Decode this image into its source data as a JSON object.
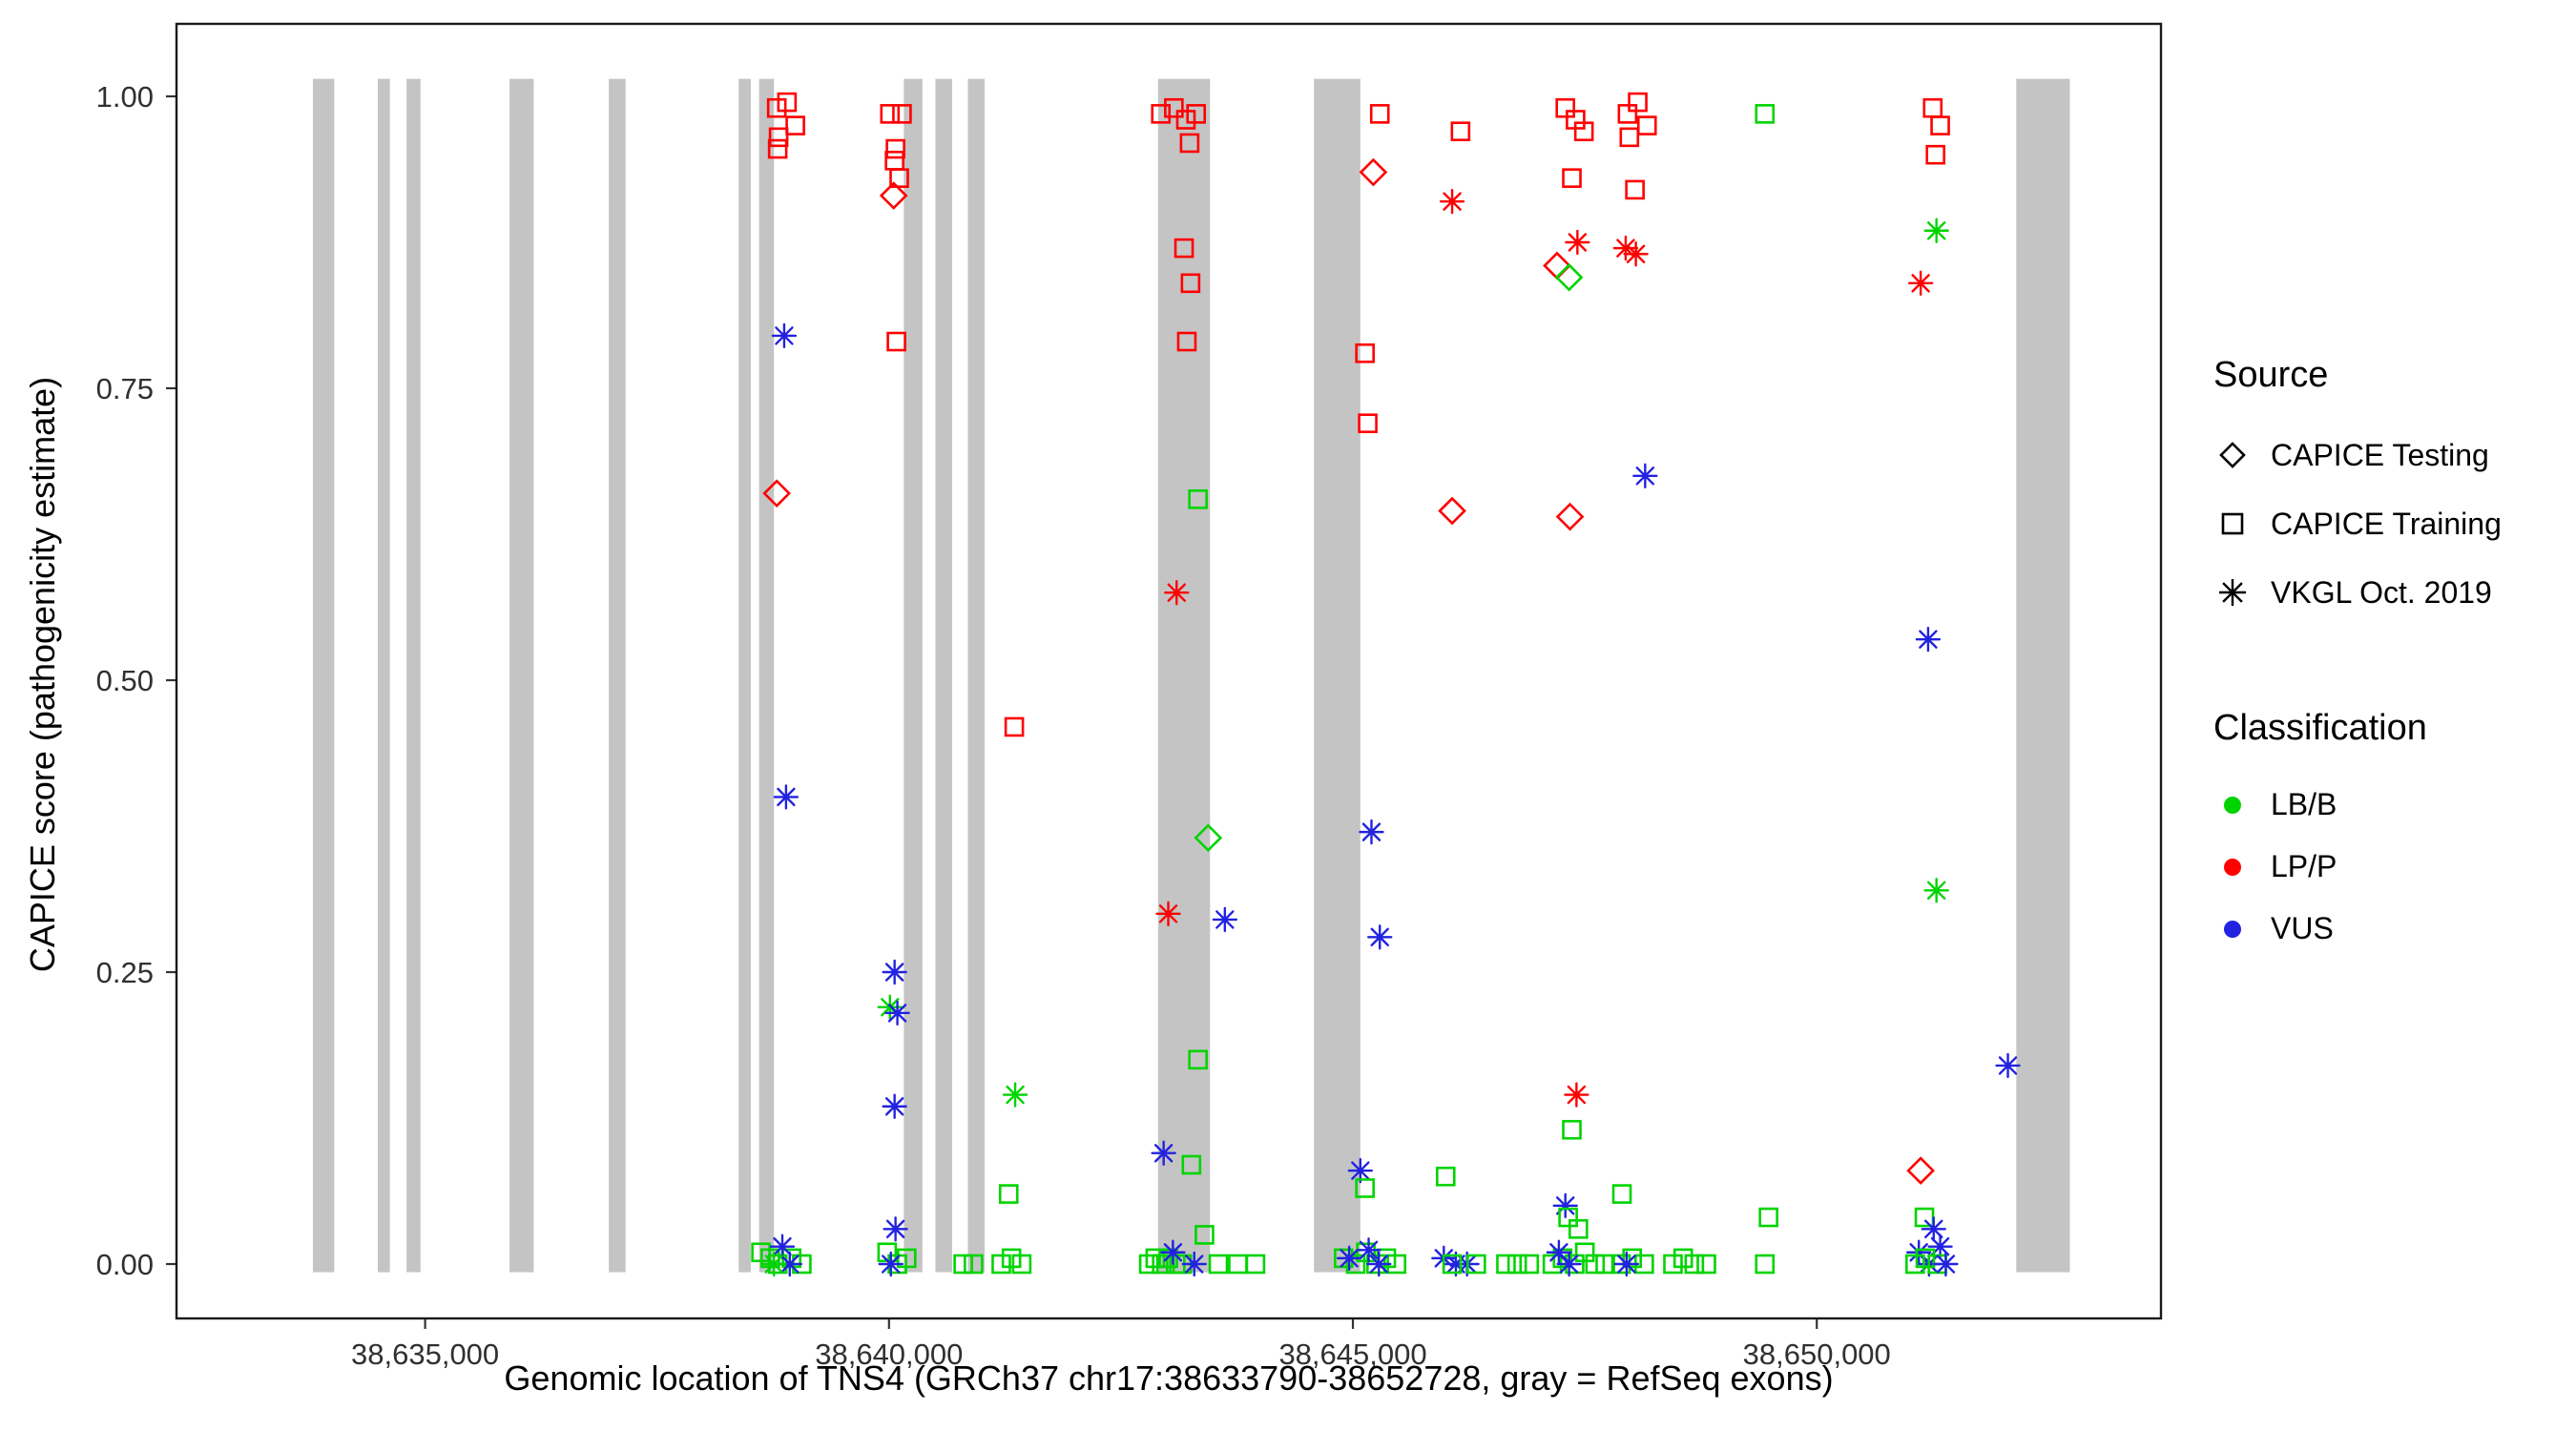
{
  "figure": {
    "kind": "scatter plot of variant pathogenicity over genomic position"
  },
  "legend": {
    "source": {
      "title": "Source",
      "items": [
        {
          "marker": "diamond",
          "label": "CAPICE Testing"
        },
        {
          "marker": "square",
          "label": "CAPICE Training"
        },
        {
          "marker": "asterisk",
          "label": "VKGL Oct. 2019"
        }
      ]
    },
    "classification": {
      "title": "Classification",
      "items": [
        {
          "key": "lbb",
          "label": "LB/B"
        },
        {
          "key": "lpp",
          "label": "LP/P"
        },
        {
          "key": "vus",
          "label": "VUS"
        }
      ]
    }
  },
  "colors": {
    "lbb": "#00D400",
    "lpp": "#FF0000",
    "vus": "#2222E0",
    "exon": "#C4C4C4",
    "tick_text": "#303030",
    "panel_border": "#1a1a1a"
  },
  "chart_data": {
    "type": "scatter",
    "title": "",
    "xlabel": "Genomic location of TNS4 (GRCh37 chr17:38633790-38652728, gray = RefSeq exons)",
    "ylabel": "CAPICE score (pathogenicity estimate)",
    "x_domain": [
      38632320,
      38653710
    ],
    "y_domain": [
      0,
      1
    ],
    "x_ticks": [
      {
        "value": 38635000,
        "label": "38,635,000"
      },
      {
        "value": 38640000,
        "label": "38,640,000"
      },
      {
        "value": 38645000,
        "label": "38,645,000"
      },
      {
        "value": 38650000,
        "label": "38,650,000"
      }
    ],
    "y_ticks": [
      {
        "value": 1.0,
        "label": "1.00"
      },
      {
        "value": 0.75,
        "label": "0.75"
      },
      {
        "value": 0.5,
        "label": "0.50"
      },
      {
        "value": 0.25,
        "label": "0.25"
      },
      {
        "value": 0.0,
        "label": "0.00"
      }
    ],
    "exons_note": "gray RefSeq exon bands, [start,end] genomic positions",
    "exons": [
      [
        38633790,
        38634020
      ],
      [
        38634490,
        38634620
      ],
      [
        38634800,
        38634950
      ],
      [
        38635910,
        38636170
      ],
      [
        38636980,
        38637160
      ],
      [
        38638380,
        38638510
      ],
      [
        38638600,
        38638760
      ],
      [
        38640160,
        38640360
      ],
      [
        38640500,
        38640680
      ],
      [
        38640850,
        38641030
      ],
      [
        38642900,
        38643460
      ],
      [
        38644580,
        38645080
      ],
      [
        38652150,
        38652728
      ]
    ],
    "points_format": [
      "genomic_position",
      "capice_score",
      "source (testing=diamond, training=square, vkgl=asterisk)",
      "classification"
    ],
    "points": [
      [
        38638790,
        0.99,
        "training",
        "LP/P"
      ],
      [
        38638900,
        0.995,
        "training",
        "LP/P"
      ],
      [
        38638990,
        0.975,
        "training",
        "LP/P"
      ],
      [
        38638810,
        0.965,
        "training",
        "LP/P"
      ],
      [
        38638800,
        0.955,
        "training",
        "LP/P"
      ],
      [
        38638870,
        0.795,
        "vkgl",
        "VUS"
      ],
      [
        38638790,
        0.66,
        "testing",
        "LP/P"
      ],
      [
        38638890,
        0.4,
        "vkgl",
        "VUS"
      ],
      [
        38638620,
        0.01,
        "training",
        "LB/B"
      ],
      [
        38638720,
        0.005,
        "training",
        "LB/B"
      ],
      [
        38638800,
        0,
        "training",
        "LB/B"
      ],
      [
        38638950,
        0.005,
        "training",
        "LB/B"
      ],
      [
        38639060,
        0,
        "training",
        "LB/B"
      ],
      [
        38638850,
        0.015,
        "vkgl",
        "VUS"
      ],
      [
        38638930,
        0,
        "vkgl",
        "VUS"
      ],
      [
        38638760,
        0,
        "vkgl",
        "LB/B"
      ],
      [
        38640010,
        0.985,
        "training",
        "LP/P"
      ],
      [
        38640140,
        0.985,
        "training",
        "LP/P"
      ],
      [
        38640070,
        0.955,
        "training",
        "LP/P"
      ],
      [
        38640060,
        0.945,
        "training",
        "LP/P"
      ],
      [
        38640110,
        0.93,
        "training",
        "LP/P"
      ],
      [
        38640050,
        0.915,
        "testing",
        "LP/P"
      ],
      [
        38640080,
        0.79,
        "training",
        "LP/P"
      ],
      [
        38640060,
        0.25,
        "vkgl",
        "VUS"
      ],
      [
        38640010,
        0.22,
        "vkgl",
        "LB/B"
      ],
      [
        38640090,
        0.215,
        "vkgl",
        "VUS"
      ],
      [
        38640060,
        0.135,
        "vkgl",
        "VUS"
      ],
      [
        38640070,
        0.03,
        "vkgl",
        "VUS"
      ],
      [
        38639980,
        0.01,
        "training",
        "LB/B"
      ],
      [
        38640090,
        0,
        "training",
        "LB/B"
      ],
      [
        38640190,
        0.005,
        "training",
        "LB/B"
      ],
      [
        38640020,
        0,
        "vkgl",
        "VUS"
      ],
      [
        38640800,
        0,
        "training",
        "LB/B"
      ],
      [
        38640910,
        0,
        "training",
        "LB/B"
      ],
      [
        38641350,
        0.46,
        "training",
        "LP/P"
      ],
      [
        38641360,
        0.145,
        "vkgl",
        "LB/B"
      ],
      [
        38641290,
        0.06,
        "training",
        "LB/B"
      ],
      [
        38641210,
        0,
        "training",
        "LB/B"
      ],
      [
        38641320,
        0.005,
        "training",
        "LB/B"
      ],
      [
        38641430,
        0,
        "training",
        "LB/B"
      ],
      [
        38642930,
        0.985,
        "training",
        "LP/P"
      ],
      [
        38643070,
        0.99,
        "training",
        "LP/P"
      ],
      [
        38643200,
        0.98,
        "training",
        "LP/P"
      ],
      [
        38643310,
        0.985,
        "training",
        "LP/P"
      ],
      [
        38643240,
        0.96,
        "training",
        "LP/P"
      ],
      [
        38643180,
        0.87,
        "training",
        "LP/P"
      ],
      [
        38643250,
        0.84,
        "training",
        "LP/P"
      ],
      [
        38643210,
        0.79,
        "training",
        "LP/P"
      ],
      [
        38643330,
        0.655,
        "training",
        "LB/B"
      ],
      [
        38643100,
        0.575,
        "vkgl",
        "LP/P"
      ],
      [
        38643440,
        0.365,
        "testing",
        "LB/B"
      ],
      [
        38643010,
        0.3,
        "vkgl",
        "LP/P"
      ],
      [
        38643620,
        0.295,
        "vkgl",
        "VUS"
      ],
      [
        38643330,
        0.175,
        "training",
        "LB/B"
      ],
      [
        38642960,
        0.095,
        "vkgl",
        "VUS"
      ],
      [
        38643260,
        0.085,
        "training",
        "LB/B"
      ],
      [
        38643400,
        0.025,
        "training",
        "LB/B"
      ],
      [
        38642800,
        0,
        "training",
        "LB/B"
      ],
      [
        38642870,
        0.005,
        "training",
        "LB/B"
      ],
      [
        38642940,
        0,
        "training",
        "LB/B"
      ],
      [
        38643010,
        0.005,
        "training",
        "LB/B"
      ],
      [
        38643090,
        0,
        "training",
        "LB/B"
      ],
      [
        38643160,
        0,
        "training",
        "LB/B"
      ],
      [
        38643550,
        0,
        "training",
        "LB/B"
      ],
      [
        38643760,
        0,
        "training",
        "LB/B"
      ],
      [
        38643950,
        0,
        "training",
        "LB/B"
      ],
      [
        38643060,
        0.01,
        "vkgl",
        "VUS"
      ],
      [
        38643290,
        0,
        "vkgl",
        "VUS"
      ],
      [
        38645290,
        0.985,
        "training",
        "LP/P"
      ],
      [
        38645220,
        0.935,
        "testing",
        "LP/P"
      ],
      [
        38645130,
        0.78,
        "training",
        "LP/P"
      ],
      [
        38645160,
        0.72,
        "training",
        "LP/P"
      ],
      [
        38645200,
        0.37,
        "vkgl",
        "VUS"
      ],
      [
        38645290,
        0.28,
        "vkgl",
        "VUS"
      ],
      [
        38645080,
        0.08,
        "vkgl",
        "VUS"
      ],
      [
        38645130,
        0.065,
        "training",
        "LB/B"
      ],
      [
        38644900,
        0.005,
        "training",
        "LB/B"
      ],
      [
        38645030,
        0,
        "training",
        "LB/B"
      ],
      [
        38645140,
        0.01,
        "training",
        "LB/B"
      ],
      [
        38645250,
        0,
        "training",
        "LB/B"
      ],
      [
        38645360,
        0.005,
        "training",
        "LB/B"
      ],
      [
        38645470,
        0,
        "training",
        "LB/B"
      ],
      [
        38644960,
        0.005,
        "vkgl",
        "VUS"
      ],
      [
        38645170,
        0.012,
        "vkgl",
        "VUS"
      ],
      [
        38645280,
        0,
        "vkgl",
        "VUS"
      ],
      [
        38646160,
        0.97,
        "training",
        "LP/P"
      ],
      [
        38646070,
        0.91,
        "vkgl",
        "LP/P"
      ],
      [
        38646070,
        0.645,
        "testing",
        "LP/P"
      ],
      [
        38646000,
        0.075,
        "training",
        "LB/B"
      ],
      [
        38645980,
        0.005,
        "vkgl",
        "VUS"
      ],
      [
        38646110,
        0,
        "vkgl",
        "VUS"
      ],
      [
        38646230,
        0,
        "vkgl",
        "VUS"
      ],
      [
        38646070,
        0,
        "training",
        "LB/B"
      ],
      [
        38646330,
        0,
        "training",
        "LB/B"
      ],
      [
        38646650,
        0,
        "training",
        "LB/B"
      ],
      [
        38646770,
        0,
        "training",
        "LB/B"
      ],
      [
        38646900,
        0,
        "training",
        "LB/B"
      ],
      [
        38647290,
        0.99,
        "training",
        "LP/P"
      ],
      [
        38647400,
        0.98,
        "training",
        "LP/P"
      ],
      [
        38647490,
        0.97,
        "training",
        "LP/P"
      ],
      [
        38647360,
        0.93,
        "training",
        "LP/P"
      ],
      [
        38647420,
        0.875,
        "vkgl",
        "LP/P"
      ],
      [
        38647200,
        0.855,
        "testing",
        "LP/P"
      ],
      [
        38647330,
        0.845,
        "testing",
        "LB/B"
      ],
      [
        38647340,
        0.64,
        "testing",
        "LP/P"
      ],
      [
        38647410,
        0.145,
        "vkgl",
        "LP/P"
      ],
      [
        38647360,
        0.115,
        "training",
        "LB/B"
      ],
      [
        38647290,
        0.05,
        "vkgl",
        "VUS"
      ],
      [
        38647320,
        0.04,
        "training",
        "LB/B"
      ],
      [
        38647430,
        0.03,
        "training",
        "LB/B"
      ],
      [
        38647150,
        0,
        "training",
        "LB/B"
      ],
      [
        38647260,
        0.005,
        "training",
        "LB/B"
      ],
      [
        38647390,
        0,
        "training",
        "LB/B"
      ],
      [
        38647500,
        0.01,
        "training",
        "LB/B"
      ],
      [
        38647610,
        0,
        "training",
        "LB/B"
      ],
      [
        38647720,
        0,
        "training",
        "LB/B"
      ],
      [
        38647220,
        0.01,
        "vkgl",
        "VUS"
      ],
      [
        38647330,
        0,
        "vkgl",
        "VUS"
      ],
      [
        38647960,
        0.985,
        "training",
        "LP/P"
      ],
      [
        38648070,
        0.995,
        "training",
        "LP/P"
      ],
      [
        38648170,
        0.975,
        "training",
        "LP/P"
      ],
      [
        38647980,
        0.965,
        "training",
        "LP/P"
      ],
      [
        38648040,
        0.92,
        "training",
        "LP/P"
      ],
      [
        38647940,
        0.87,
        "vkgl",
        "LP/P"
      ],
      [
        38648050,
        0.865,
        "vkgl",
        "LP/P"
      ],
      [
        38648150,
        0.675,
        "vkgl",
        "VUS"
      ],
      [
        38647900,
        0.06,
        "training",
        "LB/B"
      ],
      [
        38647890,
        0,
        "training",
        "LB/B"
      ],
      [
        38648010,
        0.005,
        "training",
        "LB/B"
      ],
      [
        38648140,
        0,
        "training",
        "LB/B"
      ],
      [
        38647950,
        0,
        "vkgl",
        "VUS"
      ],
      [
        38648450,
        0,
        "training",
        "LB/B"
      ],
      [
        38648560,
        0.005,
        "training",
        "LB/B"
      ],
      [
        38648680,
        0,
        "training",
        "LB/B"
      ],
      [
        38648810,
        0,
        "training",
        "LB/B"
      ],
      [
        38649440,
        0.985,
        "training",
        "LB/B"
      ],
      [
        38649480,
        0.04,
        "training",
        "LB/B"
      ],
      [
        38649440,
        0,
        "training",
        "LB/B"
      ],
      [
        38651250,
        0.99,
        "training",
        "LP/P"
      ],
      [
        38651330,
        0.975,
        "training",
        "LP/P"
      ],
      [
        38651280,
        0.95,
        "training",
        "LP/P"
      ],
      [
        38651290,
        0.885,
        "vkgl",
        "LB/B"
      ],
      [
        38651120,
        0.84,
        "vkgl",
        "LP/P"
      ],
      [
        38651200,
        0.535,
        "vkgl",
        "VUS"
      ],
      [
        38651290,
        0.32,
        "vkgl",
        "LB/B"
      ],
      [
        38651120,
        0.08,
        "testing",
        "LP/P"
      ],
      [
        38651160,
        0.04,
        "training",
        "LB/B"
      ],
      [
        38651260,
        0.03,
        "vkgl",
        "VUS"
      ],
      [
        38651100,
        0.01,
        "vkgl",
        "VUS"
      ],
      [
        38651210,
        0,
        "vkgl",
        "VUS"
      ],
      [
        38651330,
        0.015,
        "vkgl",
        "VUS"
      ],
      [
        38651060,
        0,
        "training",
        "LB/B"
      ],
      [
        38651170,
        0.005,
        "training",
        "LB/B"
      ],
      [
        38651300,
        0,
        "training",
        "LB/B"
      ],
      [
        38651390,
        0,
        "vkgl",
        "VUS"
      ],
      [
        38652060,
        0.17,
        "vkgl",
        "VUS"
      ]
    ]
  }
}
